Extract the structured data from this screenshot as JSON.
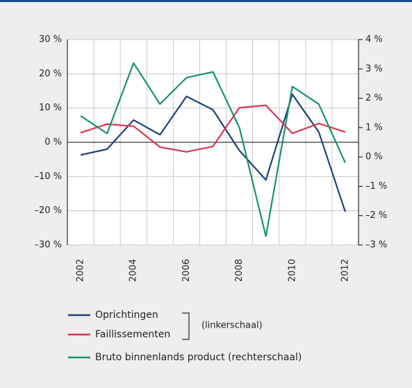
{
  "chart_data": {
    "type": "line",
    "x": [
      2002,
      2003,
      2004,
      2005,
      2006,
      2007,
      2008,
      2009,
      2010,
      2011,
      2012
    ],
    "xlim": [
      2001.5,
      2012.5
    ],
    "xticks": [
      2002,
      2004,
      2006,
      2008,
      2010,
      2012
    ],
    "ylim": [
      -30,
      30
    ],
    "yticks": [
      {
        "value": 30,
        "label": "30 %"
      },
      {
        "value": 20,
        "label": "20 %"
      },
      {
        "value": 10,
        "label": "10 %"
      },
      {
        "value": 0,
        "label": "0 %"
      },
      {
        "value": -10,
        "label": "–10 %"
      },
      {
        "value": -20,
        "label": "–20 %"
      },
      {
        "value": -30,
        "label": "–30 %"
      }
    ],
    "y2lim": [
      -3,
      4
    ],
    "y2ticks": [
      {
        "value": 4,
        "label": "4 %"
      },
      {
        "value": 3,
        "label": "3 %"
      },
      {
        "value": 2,
        "label": "2 %"
      },
      {
        "value": 1,
        "label": "1 %"
      },
      {
        "value": 0,
        "label": "0 %"
      },
      {
        "value": -1,
        "label": "–1 %"
      },
      {
        "value": -2,
        "label": "–2 %"
      },
      {
        "value": -3,
        "label": "–3 %"
      }
    ],
    "grid": true,
    "series": [
      {
        "name": "Oprichtingen",
        "color": "#1f3f7a",
        "values": [
          -3.7,
          -2.0,
          6.5,
          2.2,
          13.4,
          9.5,
          -2.4,
          -11.0,
          14.0,
          3.0,
          -20.3
        ]
      },
      {
        "name": "Faillissementen",
        "color": "#d8354f",
        "values": [
          2.8,
          5.3,
          4.7,
          -1.4,
          -2.8,
          -1.2,
          10.1,
          10.8,
          2.6,
          5.5,
          3.0
        ]
      },
      {
        "name": "Bruto binnenlands product (rechterschaal)",
        "color": "#17936a",
        "axis": "y2",
        "values": [
          1.4,
          0.8,
          3.2,
          1.8,
          2.7,
          2.9,
          1.0,
          -2.7,
          2.4,
          1.8,
          -0.2
        ]
      }
    ],
    "annotation": "(linkerschaal)"
  }
}
